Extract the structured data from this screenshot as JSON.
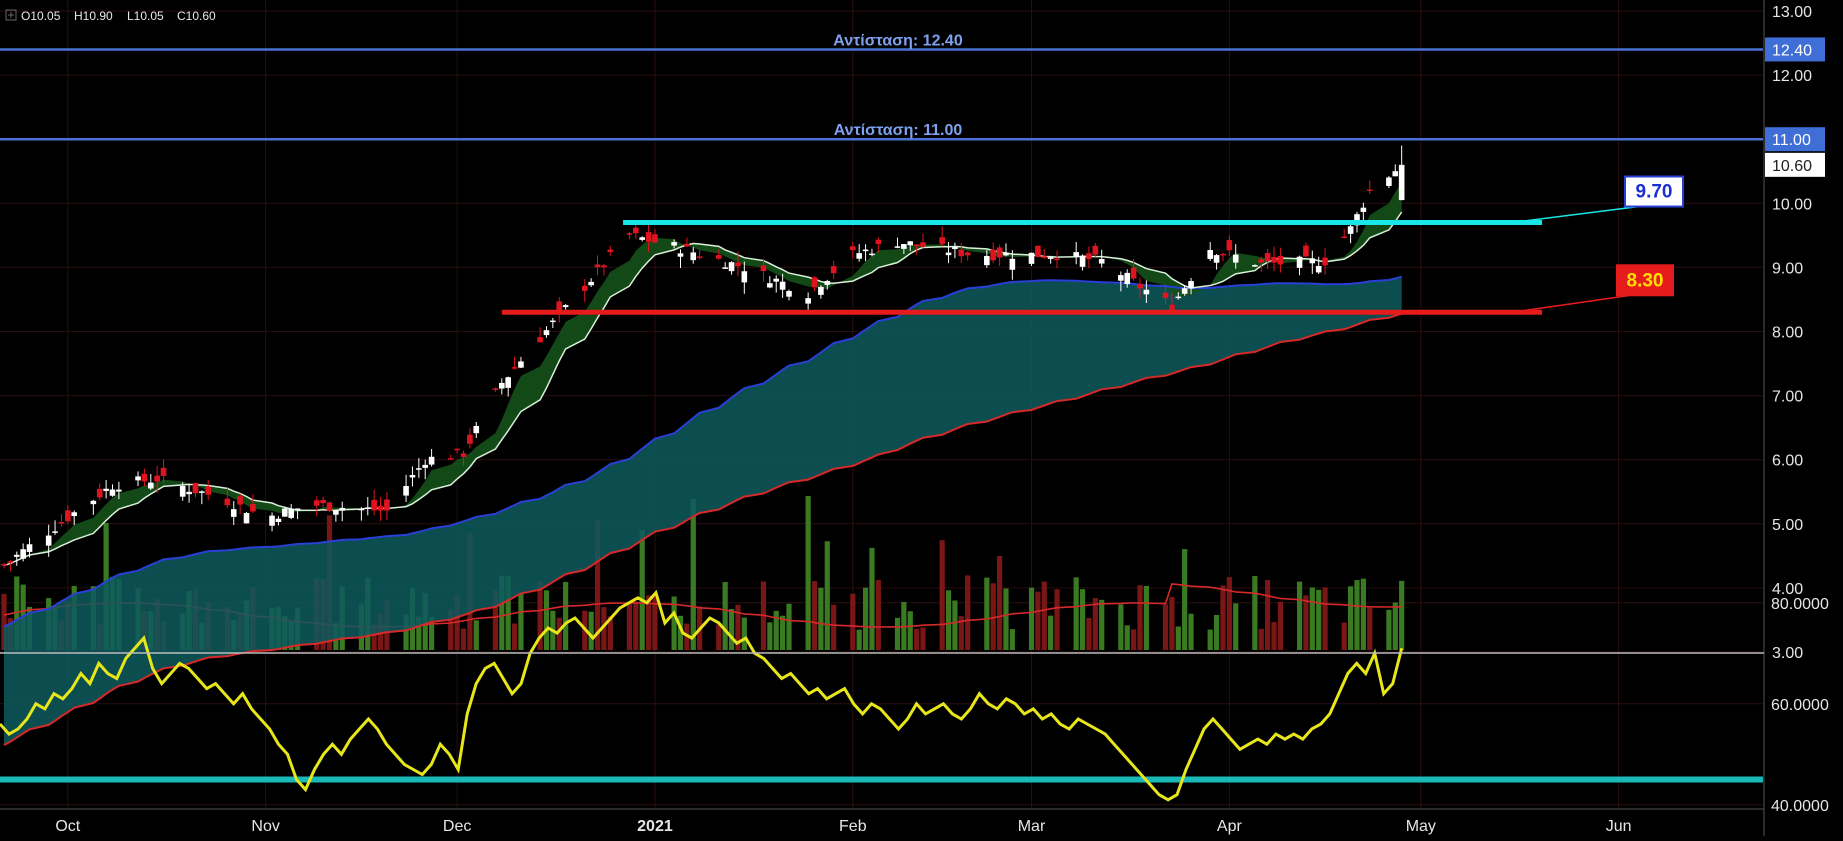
{
  "header": {
    "open": "O10.05",
    "high": "H10.90",
    "low": "L10.05",
    "close": "C10.60"
  },
  "colors": {
    "background": "#000000",
    "resistance": "#4a72d4",
    "support_cyan": "#19e6e6",
    "support_red": "#e61b1b",
    "candle_up": "#ffffff",
    "candle_down": "#e0141e",
    "ma_blue": "#2a3fd6",
    "ma_red": "#d62a2a",
    "cloud_fill": "#0e5a5e",
    "green_cloud": "#15501a",
    "rsi_line": "#e6e61a",
    "rsi_level": "#1ab8b8",
    "vol_up": "#3a7a22",
    "vol_down": "#7a1616"
  },
  "chart_data": {
    "type": "candlestick",
    "y_range": [
      3.0,
      13.0
    ],
    "y_ticks": [
      "3.00",
      "4.00",
      "5.00",
      "6.00",
      "7.00",
      "8.00",
      "9.00",
      "10.00",
      "11.00",
      "12.00",
      "13.00"
    ],
    "x_labels": [
      "Oct",
      "Nov",
      "Dec",
      "2021",
      "Feb",
      "Mar",
      "Apr",
      "May",
      "Jun"
    ],
    "resistance_lines": [
      {
        "label": "Αντίσταση: 12.40",
        "value": 12.4,
        "tag": "12.40"
      },
      {
        "label": "Αντίσταση: 11.00",
        "value": 11.0,
        "tag": "11.00"
      }
    ],
    "last_price": {
      "value": 10.6,
      "tag": "10.60"
    },
    "support_levels": [
      {
        "value": 9.7,
        "label": "9.70",
        "from": "2020-12-27",
        "to": "2021-05-20",
        "color": "#19e6e6"
      },
      {
        "value": 8.3,
        "label": "8.30",
        "from": "2020-12-08",
        "to": "2021-05-20",
        "color": "#e61b1b"
      }
    ],
    "rsi": {
      "y_range": [
        36,
        90
      ],
      "y_ticks": [
        "40.0000",
        "60.0000",
        "80.0000"
      ],
      "level": 45,
      "values": [
        56,
        54,
        55,
        57,
        60,
        59,
        62,
        61,
        63,
        66,
        64,
        68,
        66,
        65,
        69,
        71,
        73,
        67,
        64,
        66,
        68,
        67,
        65,
        63,
        64,
        62,
        60,
        62,
        59,
        57,
        55,
        52,
        50,
        45,
        43,
        47,
        50,
        52,
        50,
        53,
        55,
        57,
        55,
        52,
        50,
        48,
        47,
        46,
        48,
        52,
        50,
        47,
        58,
        64,
        67,
        68,
        65,
        62,
        64,
        70,
        73,
        75,
        74,
        76,
        77,
        75,
        73,
        75,
        77,
        79,
        80,
        81,
        80,
        82,
        76,
        78,
        74,
        73,
        75,
        77,
        76,
        74,
        72,
        73,
        70,
        69,
        67,
        65,
        66,
        64,
        62,
        63,
        61,
        62,
        63,
        60,
        58,
        60,
        59,
        57,
        55,
        57,
        60,
        58,
        59,
        60,
        58,
        57,
        59,
        62,
        60,
        59,
        61,
        60,
        58,
        59,
        57,
        58,
        56,
        55,
        57,
        56,
        55,
        54,
        52,
        50,
        48,
        46,
        44,
        42,
        41,
        42,
        47,
        51,
        55,
        57,
        55,
        53,
        51,
        52,
        53,
        52,
        54,
        53,
        54,
        53,
        55,
        56,
        58,
        62,
        66,
        68,
        66,
        70,
        62,
        64,
        71
      ]
    }
  }
}
